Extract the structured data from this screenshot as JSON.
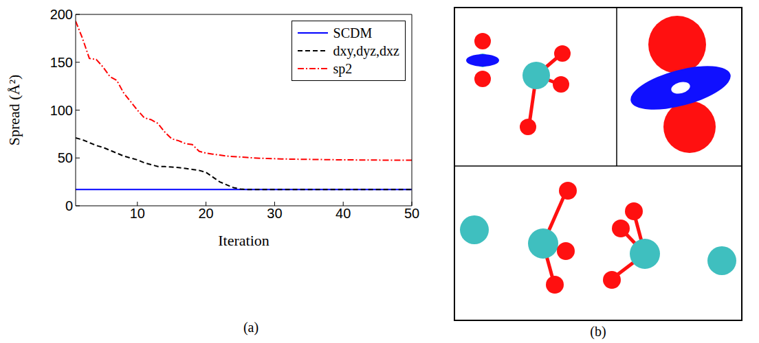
{
  "chart_data": {
    "type": "line",
    "caption": "(a)",
    "x_label": "Iteration",
    "y_label": "Spread (Å²)",
    "x": [
      1,
      2,
      3,
      4,
      5,
      6,
      7,
      8,
      9,
      10,
      11,
      12,
      13,
      14,
      15,
      16,
      17,
      18,
      19,
      20,
      21,
      22,
      23,
      24,
      25,
      26,
      27,
      28,
      29,
      30,
      31,
      32,
      33,
      34,
      35,
      36,
      37,
      38,
      39,
      40,
      41,
      42,
      43,
      44,
      45,
      46,
      47,
      48,
      49,
      50
    ],
    "xlim": [
      1,
      50
    ],
    "xticks": [
      10,
      20,
      30,
      40,
      50
    ],
    "ylim": [
      0,
      200
    ],
    "yticks": [
      0,
      50,
      100,
      150,
      200
    ],
    "legend": "upper right",
    "grid": false,
    "series": [
      {
        "name": "SCDM",
        "color": "#0000ff",
        "line_style": "solid",
        "values": [
          17,
          17,
          17,
          17,
          17,
          17,
          17,
          17,
          17,
          17,
          17,
          17,
          17,
          17,
          17,
          17,
          17,
          17,
          17,
          17,
          17,
          17,
          17,
          17,
          17,
          17,
          17,
          17,
          17,
          17,
          17,
          17,
          17,
          17,
          17,
          17,
          17,
          17,
          17,
          17,
          17,
          17,
          17,
          17,
          17,
          17,
          17,
          17,
          17,
          17
        ]
      },
      {
        "name": "dxy,dyz,dxz",
        "color": "#000000",
        "line_style": "dashed",
        "values": [
          71,
          69,
          66,
          63,
          61,
          58,
          55,
          52,
          50,
          48,
          45,
          43,
          41,
          41,
          40.5,
          40,
          39,
          38,
          37,
          35,
          30,
          25,
          22,
          19,
          17.5,
          17,
          17,
          17,
          17,
          17,
          17,
          17,
          17,
          17,
          17,
          17,
          17,
          17,
          17,
          17,
          17,
          17,
          17,
          17,
          17,
          17,
          17,
          17,
          17,
          17
        ]
      },
      {
        "name": "sp2",
        "color": "#ff0000",
        "line_style": "dashdot",
        "values": [
          193,
          175,
          154,
          153,
          145,
          135,
          131,
          118,
          109,
          100,
          92,
          90,
          86,
          77,
          70,
          68,
          65,
          64,
          57,
          55,
          54,
          53,
          52,
          51.5,
          51,
          50.5,
          50,
          49.7,
          49.4,
          49.2,
          49,
          48.8,
          48.7,
          48.6,
          48.5,
          48.4,
          48.3,
          48.2,
          48.1,
          48,
          48,
          47.9,
          47.9,
          47.8,
          47.8,
          47.7,
          47.7,
          47.6,
          47.6,
          47.6
        ]
      }
    ]
  },
  "image": {
    "caption": "(b)"
  }
}
